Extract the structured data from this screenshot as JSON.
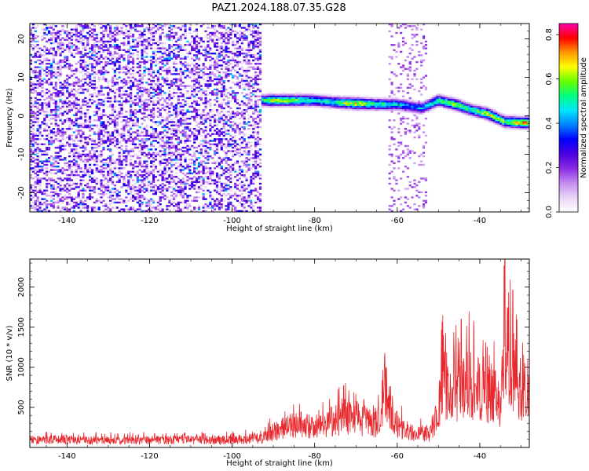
{
  "chart_data": [
    {
      "type": "heatmap",
      "title": "PAZ1.2024.188.07.35.G28",
      "xlabel": "Height of straight line (km)",
      "ylabel": "Frequency (Hz)",
      "xlim": [
        -149,
        -28
      ],
      "ylim": [
        -25,
        24
      ],
      "x_ticks": [
        "-140",
        "-120",
        "-100",
        "-80",
        "-60",
        "-40"
      ],
      "y_ticks": [
        "-20",
        "-10",
        "0",
        "10",
        "20"
      ],
      "colorbar": {
        "label": "Normalized spectral amplitude",
        "range": [
          0.0,
          0.85
        ],
        "ticks": [
          "0.0",
          "0.2",
          "0.4",
          "0.6",
          "0.8"
        ],
        "colors": [
          "#ffffff",
          "#e9d6f7",
          "#c58af0",
          "#8a2be2",
          "#4b00e0",
          "#0000ff",
          "#0080ff",
          "#00e5ff",
          "#00ff80",
          "#66ff00",
          "#ffff00",
          "#ff9900",
          "#ff0000",
          "#ff00aa"
        ]
      },
      "ridge": {
        "x": [
          -93,
          -90,
          -85,
          -80,
          -75,
          -70,
          -65,
          -60,
          -57,
          -54,
          -50,
          -46,
          -42,
          -38,
          -34,
          -30,
          -28
        ],
        "frequency": [
          4,
          4,
          4,
          4,
          3.5,
          3.2,
          3,
          3,
          2.5,
          2,
          4,
          3,
          1.5,
          0.5,
          -1.5,
          -1.8,
          -1.8
        ],
        "peak_amplitude": [
          0.55,
          0.75,
          0.7,
          0.55,
          0.6,
          0.8,
          0.6,
          0.55,
          0.45,
          0.5,
          0.6,
          0.7,
          0.6,
          0.75,
          0.65,
          0.8,
          0.8
        ]
      },
      "noise_region_x": [
        -149,
        -93
      ],
      "noise_region_amplitude": [
        0.05,
        0.3
      ]
    },
    {
      "type": "line",
      "xlabel": "Height of straight line (km)",
      "ylabel": "SNR (10 * v/v)",
      "xlim": [
        -149,
        -28
      ],
      "ylim": [
        0,
        2350
      ],
      "x_ticks": [
        "-140",
        "-120",
        "-100",
        "-80",
        "-60",
        "-40"
      ],
      "y_ticks": [
        "500",
        "1000",
        "1500",
        "2000"
      ],
      "color": "#e8282d",
      "envelope": {
        "x": [
          -149,
          -140,
          -130,
          -120,
          -110,
          -100,
          -93,
          -90,
          -87,
          -84,
          -80,
          -77,
          -73,
          -70,
          -67,
          -64,
          -63,
          -60,
          -57,
          -55,
          -52,
          -50,
          -49,
          -47,
          -45,
          -43,
          -41,
          -39,
          -37,
          -35,
          -34,
          -33,
          -32,
          -30,
          -28
        ],
        "y": [
          150,
          150,
          140,
          150,
          145,
          150,
          180,
          320,
          400,
          450,
          420,
          500,
          600,
          620,
          480,
          520,
          1100,
          450,
          300,
          280,
          280,
          700,
          1450,
          1000,
          1250,
          1300,
          1150,
          1050,
          1050,
          950,
          2100,
          1700,
          1550,
          1100,
          1000
        ]
      },
      "notable_peaks": [
        {
          "x": -63,
          "y": 1180
        },
        {
          "x": -49,
          "y": 1650
        },
        {
          "x": -44.5,
          "y": 1600
        },
        {
          "x": -41.5,
          "y": 1580
        },
        {
          "x": -34,
          "y": 2330
        },
        {
          "x": -32,
          "y": 1960
        }
      ]
    }
  ]
}
